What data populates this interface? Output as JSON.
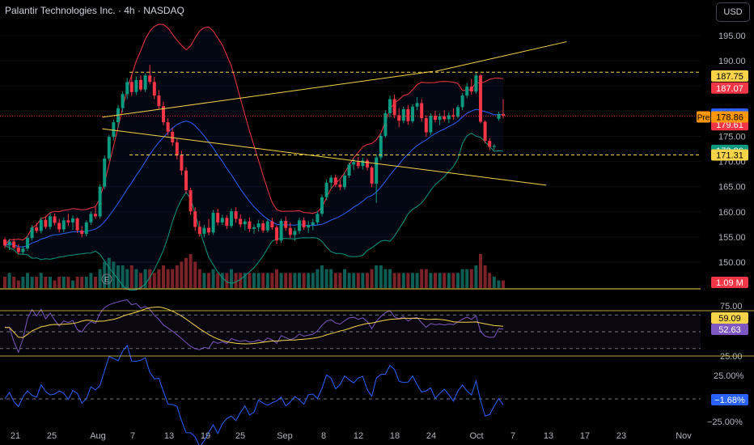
{
  "header": {
    "title": "Palantir Technologies Inc. · 4h · NASDAQ",
    "currency": "USD"
  },
  "chart_data": {
    "type": "candlestick",
    "title": "Palantir Technologies Inc. · 4h · NASDAQ",
    "x_labels": [
      "21",
      "25",
      "Aug",
      "7",
      "13",
      "19",
      "25",
      "Sep",
      "8",
      "12",
      "18",
      "24",
      "Oct",
      "7",
      "13",
      "17",
      "23",
      "Nov"
    ],
    "price_axis": {
      "ylim": [
        147.5,
        197.5
      ],
      "ticks": [
        "150.00",
        "155.00",
        "160.00",
        "165.00",
        "170.00",
        "175.00",
        "180.00",
        "185.00",
        "190.00",
        "195.00"
      ]
    },
    "price_badges": [
      {
        "label": "187.75",
        "value": 187.75,
        "color": "#f7d44a",
        "text_color": "#000000"
      },
      {
        "label": "187.07",
        "value": 187.07,
        "color": "#f23645",
        "text_color": "#ffffff"
      },
      {
        "label": "180.21",
        "value": 180.21,
        "color": "#2962ff",
        "text_color": "#ffffff"
      },
      {
        "label": "179.61",
        "value": 179.61,
        "color": "#f23645",
        "text_color": "#ffffff"
      },
      {
        "label": "178.86",
        "value": 178.86,
        "color": "#ff9800",
        "text_color": "#000000",
        "tag": "Pre"
      },
      {
        "label": "173.36",
        "value": 173.36,
        "color": "#089981",
        "text_color": "#ffffff"
      },
      {
        "label": "171.31",
        "value": 171.31,
        "color": "#f7d44a",
        "text_color": "#000000"
      }
    ],
    "horizontal_levels": [
      187.75,
      171.31
    ],
    "trendlines": [
      {
        "name": "upper-channel",
        "from": [
          21.5,
          178.8
        ],
        "to": [
          94.5,
          187.9
        ]
      },
      {
        "name": "upper-extension",
        "from": [
          95,
          187.9
        ],
        "to": [
          124,
          193.8
        ]
      },
      {
        "name": "lower-channel",
        "from": [
          21.5,
          176.5
        ],
        "to": [
          119.5,
          165.3
        ]
      }
    ],
    "candles": [
      [
        154.5,
        154.9,
        152.8,
        153.3
      ],
      [
        153.3,
        154.6,
        152.4,
        154.1
      ],
      [
        154.1,
        154.7,
        152.6,
        152.9
      ],
      [
        152.9,
        153.5,
        151.6,
        152.0
      ],
      [
        152.0,
        153.2,
        151.4,
        152.7
      ],
      [
        152.7,
        155.2,
        152.2,
        154.8
      ],
      [
        154.8,
        157.4,
        154.3,
        156.9
      ],
      [
        156.9,
        157.8,
        155.8,
        156.2
      ],
      [
        156.2,
        158.9,
        155.7,
        158.4
      ],
      [
        158.4,
        159.2,
        156.6,
        157.0
      ],
      [
        157.0,
        159.8,
        156.5,
        159.1
      ],
      [
        159.1,
        159.7,
        157.3,
        157.8
      ],
      [
        157.8,
        158.6,
        155.9,
        156.5
      ],
      [
        156.5,
        158.9,
        156.0,
        158.3
      ],
      [
        158.3,
        159.6,
        157.2,
        157.9
      ],
      [
        157.9,
        159.3,
        156.4,
        158.7
      ],
      [
        158.7,
        158.9,
        155.8,
        156.3
      ],
      [
        156.3,
        157.2,
        154.9,
        155.6
      ],
      [
        155.6,
        158.3,
        155.1,
        157.9
      ],
      [
        157.9,
        160.1,
        157.4,
        159.6
      ],
      [
        159.6,
        161.2,
        158.6,
        159.1
      ],
      [
        159.1,
        165.4,
        158.7,
        165.0
      ],
      [
        165.0,
        171.2,
        164.5,
        170.6
      ],
      [
        170.6,
        175.3,
        170.1,
        174.9
      ],
      [
        174.9,
        178.3,
        174.2,
        177.8
      ],
      [
        177.8,
        181.2,
        176.7,
        180.6
      ],
      [
        180.6,
        183.9,
        179.8,
        183.4
      ],
      [
        183.4,
        186.6,
        182.4,
        185.8
      ],
      [
        185.8,
        187.4,
        183.1,
        183.8
      ],
      [
        183.8,
        186.9,
        183.2,
        186.2
      ],
      [
        186.2,
        187.1,
        183.9,
        184.3
      ],
      [
        184.3,
        187.5,
        183.8,
        187.1
      ],
      [
        187.1,
        189.2,
        185.3,
        185.8
      ],
      [
        185.8,
        186.8,
        182.4,
        183.1
      ],
      [
        183.1,
        184.2,
        180.4,
        181.0
      ],
      [
        181.0,
        181.9,
        177.2,
        177.8
      ],
      [
        177.8,
        178.6,
        175.2,
        175.9
      ],
      [
        175.9,
        176.7,
        173.1,
        173.8
      ],
      [
        173.8,
        174.6,
        170.4,
        171.2
      ],
      [
        171.2,
        172.1,
        167.3,
        168.2
      ],
      [
        168.2,
        168.9,
        163.6,
        164.3
      ],
      [
        164.3,
        164.8,
        159.4,
        160.1
      ],
      [
        160.1,
        160.9,
        156.2,
        157.0
      ],
      [
        157.0,
        158.2,
        155.1,
        155.6
      ],
      [
        155.6,
        157.4,
        154.9,
        156.8
      ],
      [
        156.8,
        158.6,
        155.3,
        155.9
      ],
      [
        155.9,
        160.4,
        155.4,
        159.8
      ],
      [
        159.8,
        160.6,
        157.3,
        157.9
      ],
      [
        157.9,
        159.4,
        157.4,
        158.8
      ],
      [
        158.8,
        159.3,
        156.6,
        157.2
      ],
      [
        157.2,
        160.7,
        156.8,
        160.1
      ],
      [
        160.1,
        160.9,
        157.8,
        158.6
      ],
      [
        158.6,
        159.5,
        156.9,
        157.5
      ],
      [
        157.5,
        158.6,
        156.3,
        158.1
      ],
      [
        158.1,
        158.9,
        156.0,
        156.6
      ],
      [
        156.6,
        157.5,
        155.6,
        156.9
      ],
      [
        156.9,
        158.4,
        156.1,
        157.7
      ],
      [
        157.7,
        158.3,
        155.8,
        156.3
      ],
      [
        156.3,
        158.6,
        155.9,
        158.1
      ],
      [
        158.1,
        158.8,
        156.4,
        156.9
      ],
      [
        156.9,
        157.3,
        153.6,
        154.3
      ],
      [
        154.3,
        158.6,
        153.8,
        158.2
      ],
      [
        158.2,
        159.1,
        156.2,
        156.8
      ],
      [
        156.8,
        157.9,
        154.8,
        155.4
      ],
      [
        155.4,
        156.8,
        154.2,
        156.2
      ],
      [
        156.2,
        158.8,
        155.6,
        158.3
      ],
      [
        158.3,
        158.9,
        156.4,
        156.9
      ],
      [
        156.9,
        158.2,
        155.8,
        157.4
      ],
      [
        157.4,
        158.6,
        156.3,
        157.9
      ],
      [
        157.9,
        160.2,
        157.3,
        159.6
      ],
      [
        159.6,
        163.4,
        159.1,
        162.9
      ],
      [
        162.9,
        166.4,
        162.3,
        165.8
      ],
      [
        165.8,
        167.3,
        164.6,
        166.8
      ],
      [
        166.8,
        167.4,
        164.9,
        165.4
      ],
      [
        165.4,
        166.3,
        164.3,
        164.9
      ],
      [
        164.9,
        167.9,
        164.4,
        167.2
      ],
      [
        167.2,
        169.8,
        166.7,
        169.4
      ],
      [
        169.4,
        170.6,
        168.3,
        169.9
      ],
      [
        169.9,
        170.9,
        168.6,
        169.1
      ],
      [
        169.1,
        170.8,
        168.4,
        170.2
      ],
      [
        170.2,
        170.6,
        168.2,
        168.8
      ],
      [
        168.8,
        169.1,
        164.9,
        165.6
      ],
      [
        165.6,
        171.4,
        161.8,
        170.8
      ],
      [
        170.8,
        175.6,
        170.3,
        175.1
      ],
      [
        175.1,
        180.2,
        174.7,
        179.6
      ],
      [
        179.6,
        183.1,
        178.8,
        182.4
      ],
      [
        182.4,
        183.3,
        178.6,
        179.2
      ],
      [
        179.2,
        180.6,
        176.8,
        178.1
      ],
      [
        178.1,
        180.9,
        177.6,
        180.4
      ],
      [
        180.4,
        181.2,
        177.3,
        178.0
      ],
      [
        178.0,
        181.4,
        177.6,
        180.9
      ],
      [
        180.9,
        182.8,
        180.2,
        181.6
      ],
      [
        181.6,
        182.4,
        177.9,
        178.6
      ],
      [
        178.6,
        179.2,
        174.9,
        175.8
      ],
      [
        175.8,
        179.6,
        175.3,
        179.1
      ],
      [
        179.1,
        180.1,
        177.8,
        178.3
      ],
      [
        178.3,
        179.6,
        177.2,
        179.0
      ],
      [
        179.0,
        180.2,
        177.9,
        178.4
      ],
      [
        178.4,
        179.8,
        177.6,
        179.2
      ],
      [
        179.2,
        180.6,
        178.3,
        178.9
      ],
      [
        178.9,
        181.2,
        178.6,
        180.8
      ],
      [
        180.8,
        183.6,
        180.2,
        183.1
      ],
      [
        183.1,
        185.6,
        182.6,
        184.9
      ],
      [
        184.9,
        186.4,
        183.3,
        183.9
      ],
      [
        183.9,
        187.8,
        183.5,
        187.1
      ],
      [
        187.1,
        187.4,
        177.6,
        177.9
      ],
      [
        177.9,
        178.2,
        173.6,
        174.1
      ],
      [
        174.1,
        174.6,
        172.2,
        172.9
      ],
      [
        172.9,
        173.4,
        172.3,
        173.1
      ],
      [
        178.5,
        179.9,
        178.1,
        179.4
      ],
      [
        179.4,
        182.4,
        178.6,
        179.1
      ]
    ],
    "volume": {
      "label": "1.09 M",
      "values": [
        3,
        4,
        3,
        2,
        3,
        4,
        3,
        3,
        4,
        3,
        3,
        2,
        3,
        3,
        3,
        2,
        3,
        3,
        3,
        4,
        3,
        5,
        7,
        8,
        7,
        6,
        6,
        5,
        6,
        5,
        4,
        5,
        5,
        4,
        5,
        6,
        5,
        5,
        6,
        7,
        8,
        9,
        7,
        5,
        4,
        4,
        5,
        4,
        4,
        4,
        5,
        4,
        4,
        4,
        4,
        4,
        4,
        4,
        4,
        4,
        5,
        4,
        4,
        4,
        4,
        4,
        4,
        4,
        4,
        5,
        6,
        5,
        5,
        4,
        4,
        5,
        4,
        4,
        4,
        4,
        4,
        5,
        6,
        6,
        5,
        5,
        4,
        4,
        4,
        4,
        4,
        4,
        5,
        5,
        4,
        4,
        4,
        4,
        4,
        4,
        4,
        5,
        5,
        5,
        6,
        9,
        6,
        4,
        3,
        2,
        2
      ]
    },
    "indicators": {
      "bollinger": {
        "lines": [
          "upper",
          "basis",
          "lower"
        ],
        "colors": [
          "#f23645",
          "#2962ff",
          "#089981"
        ]
      },
      "rsi": {
        "levels": [
          70,
          50,
          30
        ],
        "axis_ticks": [
          "75.00",
          "25.00"
        ],
        "values_shown": [
          "59.09",
          "52.63"
        ],
        "colors": [
          "#f7d44a",
          "#7e57c2"
        ]
      },
      "oscillator": {
        "axis_ticks": [
          "25.00%",
          "−25.00%"
        ],
        "value_shown": "−1.68%",
        "color": "#2962ff"
      }
    }
  }
}
